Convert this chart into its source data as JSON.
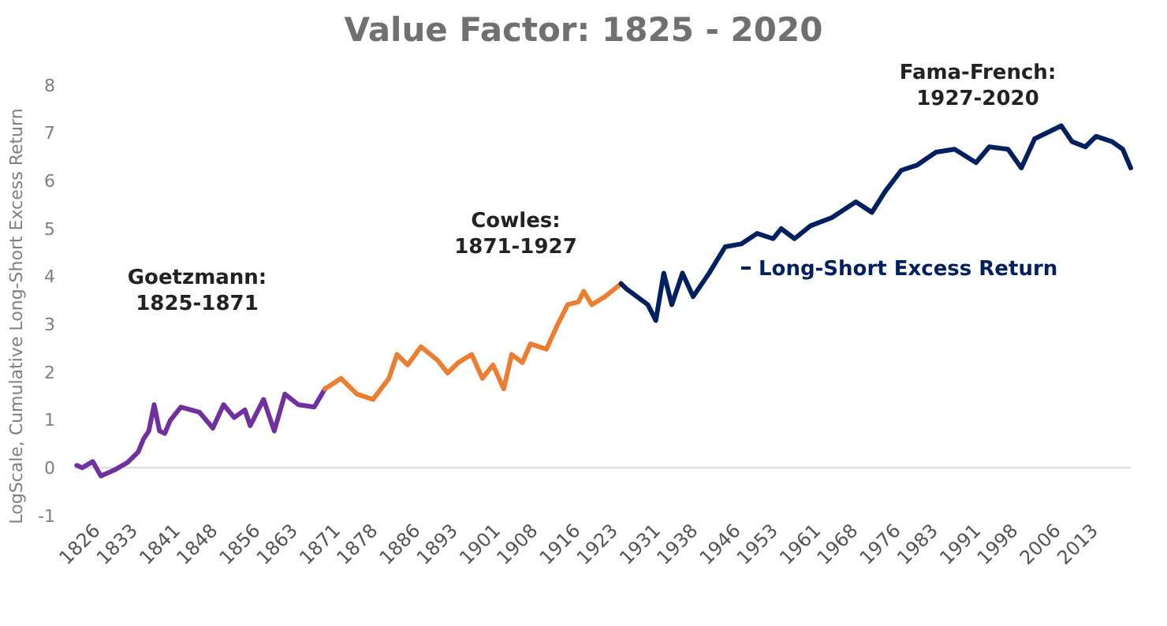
{
  "chart_data": {
    "type": "line",
    "title": "Value Factor: 1825 - 2020",
    "ylabel": "LogScale, Cumulative Long-Short Excess Return",
    "xlim": [
      1825,
      2023
    ],
    "xticks": [
      1826,
      1833,
      1841,
      1848,
      1856,
      1863,
      1871,
      1878,
      1886,
      1893,
      1901,
      1908,
      1916,
      1923,
      1931,
      1938,
      1946,
      1953,
      1961,
      1968,
      1976,
      1983,
      1991,
      1998,
      2006,
      2013
    ],
    "ylim": [
      -1,
      8
    ],
    "yticks": [
      -1,
      0,
      1,
      2,
      3,
      4,
      5,
      6,
      7,
      8
    ],
    "grid": false,
    "legend": "right",
    "line_style": "solid",
    "marker": "none",
    "ref_lines": [
      {
        "axis": "y",
        "value": 0,
        "color": "#d9d9d9"
      }
    ],
    "annotations": [
      "Goetzmann:\n1825-1871",
      "Cowles:\n1871-1927",
      "Fama-French:\n1927-2020"
    ],
    "series": [
      {
        "color": "#7030a0",
        "x": [
          1825.5,
          1826.5,
          1828.5,
          1830,
          1832.5,
          1835,
          1837,
          1838,
          1839,
          1840,
          1841,
          1842,
          1843,
          1845,
          1848.5,
          1851,
          1853,
          1855,
          1857,
          1858,
          1860.5,
          1862.5,
          1864.5,
          1867,
          1870,
          1872
        ],
        "values": [
          0.05,
          0,
          0.13,
          -0.17,
          -0.05,
          0.11,
          0.33,
          0.6,
          0.77,
          1.32,
          0.77,
          0.72,
          0.99,
          1.27,
          1.16,
          0.83,
          1.32,
          1.05,
          1.21,
          0.88,
          1.43,
          0.77,
          1.54,
          1.32,
          1.27,
          1.65
        ]
      },
      {
        "color": "#ed7d31",
        "x": [
          1872,
          1875,
          1878,
          1881,
          1884,
          1885.5,
          1887.5,
          1890,
          1893,
          1895,
          1897,
          1899.5,
          1901.5,
          1903.5,
          1905.5,
          1907,
          1909,
          1910.5,
          1913.5,
          1915.5,
          1917.5,
          1919.5,
          1920.5,
          1922,
          1924.5,
          1927.5
        ],
        "values": [
          1.65,
          1.87,
          1.54,
          1.43,
          1.87,
          2.37,
          2.15,
          2.53,
          2.26,
          1.98,
          2.2,
          2.37,
          1.87,
          2.15,
          1.65,
          2.37,
          2.2,
          2.59,
          2.48,
          2.97,
          3.41,
          3.47,
          3.69,
          3.41,
          3.58,
          3.85
        ]
      },
      {
        "name": "Long-Short Excess Return",
        "color": "#002060",
        "x": [
          1927.5,
          1928.5,
          1932.5,
          1934,
          1935.5,
          1937,
          1939,
          1941,
          1944,
          1947,
          1950,
          1953,
          1956,
          1957.5,
          1960,
          1963,
          1967,
          1971.5,
          1974.5,
          1977,
          1980,
          1983,
          1986.5,
          1990,
          1994,
          1996.5,
          2000,
          2002.5,
          2005,
          2010,
          2012,
          2014.5,
          2016.5,
          2019.5,
          2021.5,
          2023
        ],
        "values": [
          3.85,
          3.74,
          3.41,
          3.08,
          4.07,
          3.41,
          4.07,
          3.58,
          4.07,
          4.62,
          4.68,
          4.9,
          4.79,
          5.0,
          4.79,
          5.06,
          5.23,
          5.56,
          5.34,
          5.78,
          6.22,
          6.33,
          6.6,
          6.66,
          6.38,
          6.71,
          6.66,
          6.27,
          6.88,
          7.15,
          6.82,
          6.71,
          6.93,
          6.82,
          6.66,
          6.27
        ]
      }
    ]
  }
}
